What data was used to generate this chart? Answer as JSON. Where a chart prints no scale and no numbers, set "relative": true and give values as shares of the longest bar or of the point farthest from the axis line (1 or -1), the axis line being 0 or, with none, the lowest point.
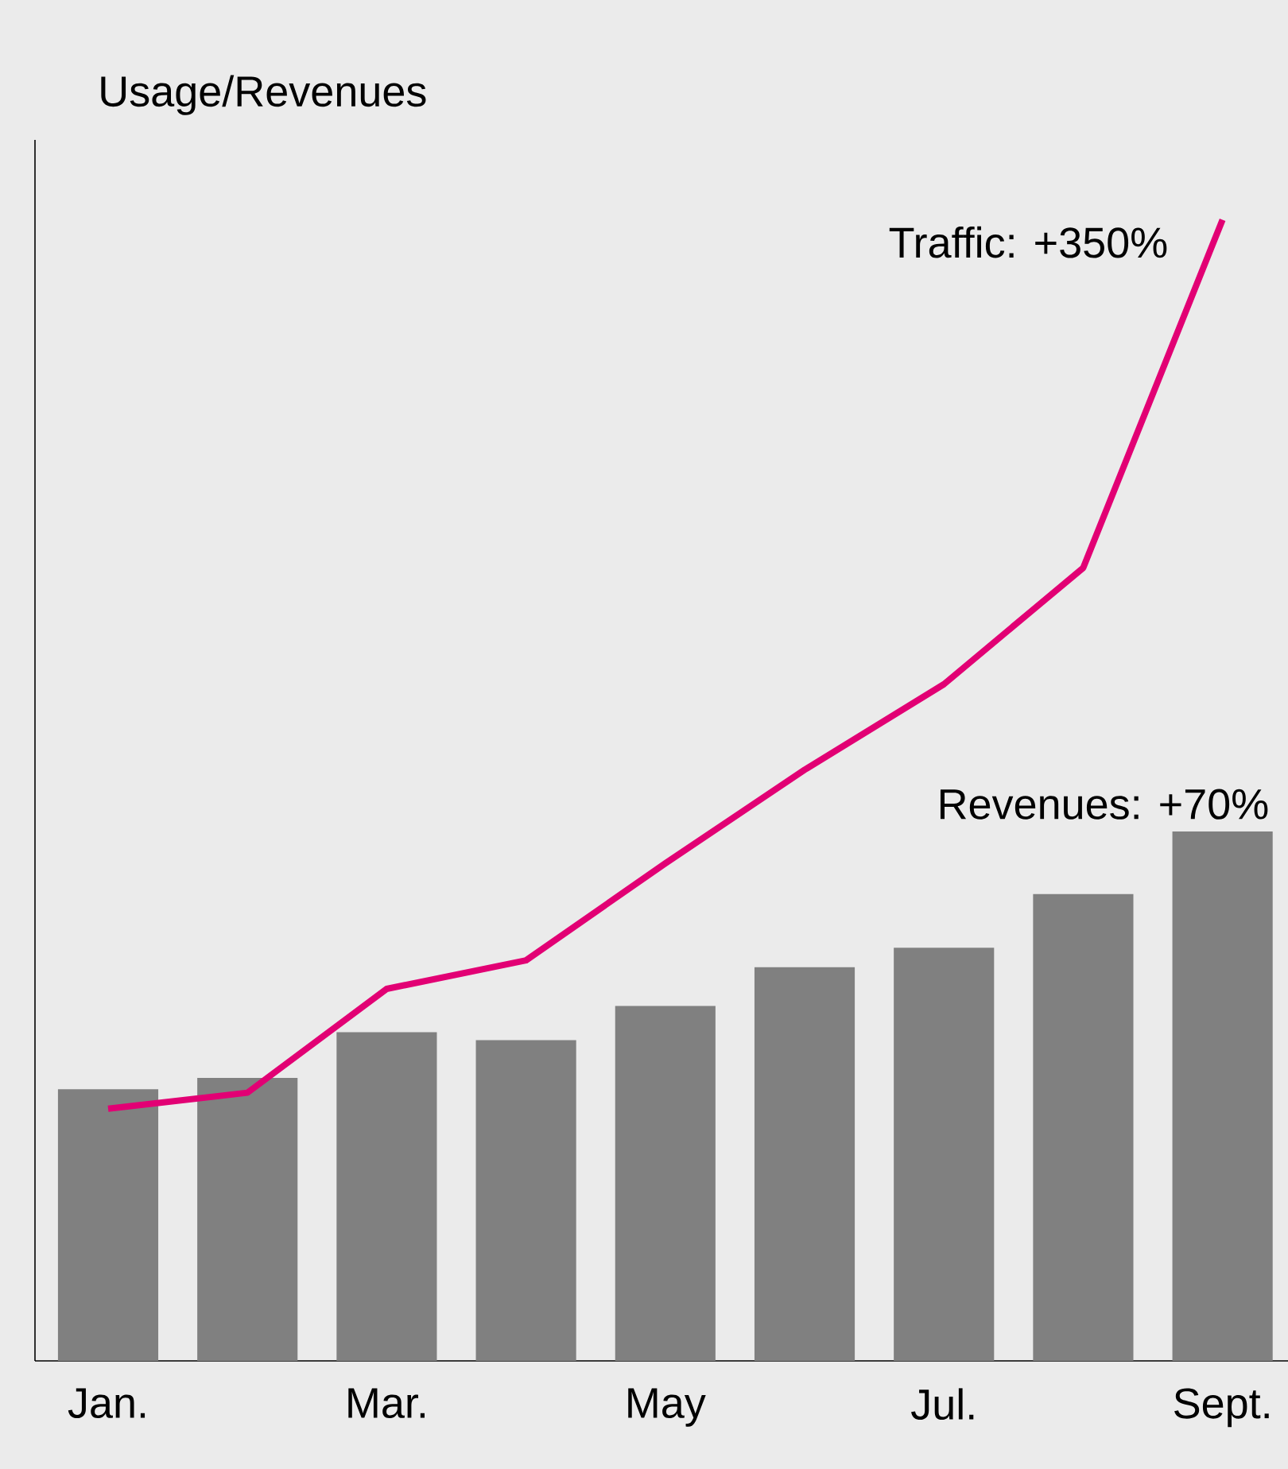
{
  "chart_data": {
    "type": "bar",
    "relative": true,
    "ylabel": "Usage/Revenues",
    "categories": [
      "Jan.",
      null,
      "Mar.",
      null,
      "May",
      null,
      "Jul.",
      null,
      "Sept."
    ],
    "series": [
      {
        "name": "Revenues: +70%",
        "color": "#808080",
        "values": [
          0.238,
          0.248,
          0.288,
          0.281,
          0.311,
          0.345,
          0.362,
          0.409,
          0.464
        ]
      },
      {
        "name": "Traffic: +350%",
        "type": "line",
        "color": "#e20074",
        "values": [
          0.221,
          0.235,
          0.326,
          0.351,
          0.436,
          0.518,
          0.593,
          0.695,
          1
        ]
      }
    ],
    "grid": false,
    "marker": "none",
    "line_style": "solid"
  }
}
